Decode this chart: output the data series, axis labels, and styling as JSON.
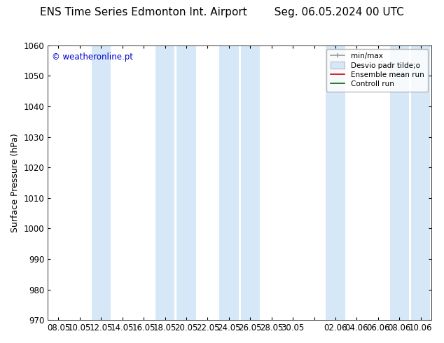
{
  "title_left": "ENS Time Series Edmonton Int. Airport",
  "title_right": "Seg. 06.05.2024 00 UTC",
  "ylabel": "Surface Pressure (hPa)",
  "watermark": "© weatheronline.pt",
  "watermark_color": "#0000cc",
  "ylim": [
    970,
    1060
  ],
  "yticks": [
    970,
    980,
    990,
    1000,
    1010,
    1020,
    1030,
    1040,
    1050,
    1060
  ],
  "xtick_labels": [
    "08.05",
    "10.05",
    "12.05",
    "14.05",
    "16.05",
    "18.05",
    "20.05",
    "22.05",
    "24.05",
    "26.05",
    "28.05",
    "30.05",
    "",
    "02.06",
    "04.06",
    "06.06",
    "08.06",
    "10.06"
  ],
  "num_xticks": 18,
  "shaded_band_color": "#d6e8f7",
  "background_color": "#ffffff",
  "plot_bg_color": "#ffffff",
  "title_fontsize": 11,
  "tick_fontsize": 8.5,
  "ylabel_fontsize": 9
}
